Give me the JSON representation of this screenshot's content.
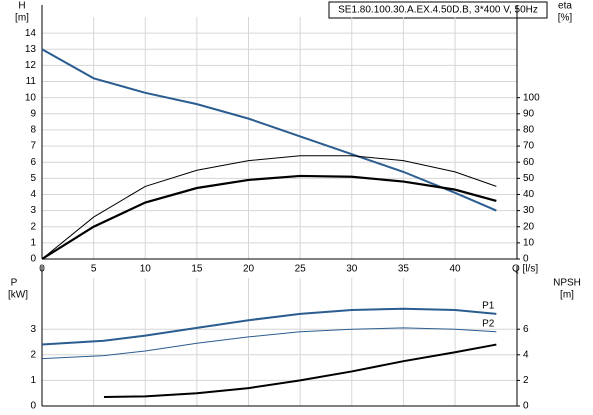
{
  "chart_data": [
    {
      "type": "line",
      "title": "SE1.80.100.30.A.EX.4.50D.B, 3*400 V, 50Hz",
      "y_label": "H",
      "y_unit": "[m]",
      "y2_label": "eta",
      "y2_unit": "[%]",
      "x_label": "Q [l/s]",
      "x": [
        0,
        5,
        10,
        15,
        20,
        25,
        30,
        35,
        40,
        44
      ],
      "series": [
        {
          "color": "#2b5d91",
          "width": 2,
          "values": [
            13,
            11.2,
            10.3,
            9.6,
            8.7,
            7.6,
            6.5,
            5.4,
            4.1,
            3.0
          ]
        },
        {
          "color": "#000000",
          "width": 2.2,
          "axis": "y2",
          "values": [
            0,
            20,
            35,
            44,
            49,
            51.5,
            51,
            48,
            43,
            36
          ]
        },
        {
          "color": "#000000",
          "width": 1,
          "axis": "y2",
          "values": [
            0,
            26,
            45,
            55,
            61,
            64,
            64,
            61,
            54,
            45
          ]
        }
      ],
      "xlim": [
        0,
        46
      ],
      "xticks": [
        0,
        5,
        10,
        15,
        20,
        25,
        30,
        35,
        40
      ],
      "ylim": [
        0,
        15
      ],
      "yticks": [
        0,
        1,
        2,
        3,
        4,
        5,
        6,
        7,
        8,
        9,
        10,
        11,
        12,
        13,
        14
      ],
      "y2lim": [
        0,
        150
      ],
      "y2ticks": [
        0,
        10,
        20,
        30,
        40,
        50,
        60,
        70,
        80,
        90,
        100
      ],
      "grid": true
    },
    {
      "type": "line",
      "y_label": "P",
      "y_unit": "[kW]",
      "y2_label": "NPSH",
      "y2_unit": "[m]",
      "x": [
        0,
        6,
        10,
        15,
        20,
        25,
        30,
        35,
        40,
        44
      ],
      "series": [
        {
          "name": "P1",
          "color": "#2b5d91",
          "width": 2,
          "values": [
            2.4,
            2.55,
            2.75,
            3.05,
            3.35,
            3.6,
            3.75,
            3.8,
            3.75,
            3.6
          ]
        },
        {
          "name": "P2",
          "color": "#2b5d91",
          "width": 1,
          "values": [
            1.85,
            1.97,
            2.15,
            2.45,
            2.7,
            2.9,
            3.0,
            3.05,
            3.0,
            2.9
          ]
        },
        {
          "color": "#000000",
          "width": 2,
          "axis": "y2",
          "values": [
            null,
            0.7,
            0.75,
            1.0,
            1.4,
            2.0,
            2.7,
            3.5,
            4.2,
            4.8
          ]
        }
      ],
      "ylim": [
        0,
        5
      ],
      "yticks": [
        0,
        1,
        2,
        3
      ],
      "y2lim": [
        0,
        10
      ],
      "y2ticks": [
        0,
        2,
        4,
        6
      ],
      "grid": true
    }
  ]
}
